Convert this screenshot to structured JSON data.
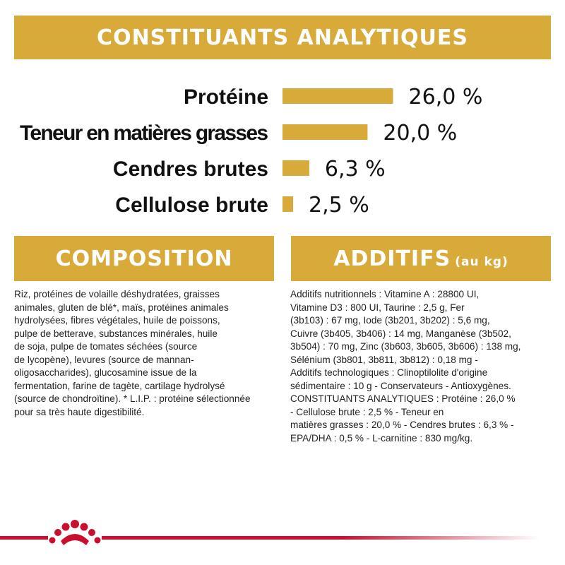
{
  "headers": {
    "constituants": "CONSTITUANTS ANALYTIQUES",
    "composition": "COMPOSITION",
    "additifs": "ADDITIFS",
    "additifs_unit": "(au kg)"
  },
  "chart_data": {
    "type": "bar",
    "categories": [
      "Protéine",
      "Teneur en matières grasses",
      "Cendres brutes",
      "Cellulose brute"
    ],
    "values": [
      26.0,
      20.0,
      6.3,
      2.5
    ],
    "value_labels": [
      "26,0 %",
      "20,0 %",
      "6,3 %",
      "2,5 %"
    ],
    "unit": "%",
    "bar_color": "#d8aa3a",
    "title": "",
    "xlabel": "",
    "ylabel": "",
    "grid": false,
    "orientation": "horizontal"
  },
  "composition_lines": [
    "Riz, protéines de volaille déshydratées, graisses",
    "animales, gluten de blé*, maïs, protéines animales",
    "hydrolysées, fibres végétales, huile de poissons,",
    "pulpe de betterave, substances minérales, huile",
    "de soja, pulpe de tomates séchées (source",
    "de lycopène), levures (source de mannan-",
    "oligosaccharides), glucosamine issue de la",
    "fermentation, farine de tagète, cartilage hydrolysé",
    "(source de chondroïtine). * L.I.P. : protéine sélectionnée",
    "pour sa très haute digestibilité."
  ],
  "additifs_lines": [
    "Additifs nutritionnels : Vitamine A : 28800 UI,",
    "Vitamine D3 : 800 UI, Taurine : 2,5 g, Fer",
    "(3b103) : 67 mg, Iode (3b201, 3b202) : 5,6 mg,",
    "Cuivre (3b405, 3b406) : 14 mg, Manganèse (3b502,",
    "3b504) : 70 mg, Zinc (3b603, 3b605, 3b606) : 138 mg,",
    "Sélénium (3b801, 3b811, 3b812) : 0,18 mg -",
    "Additifs technologiques : Clinoptilolite d'origine",
    "sédimentaire : 10 g - Conservateurs - Antioxygènes.",
    "CONSTITUANTS ANALYTIQUES : Protéine : 26,0 %",
    "- Cellulose brute : 2,5 % - Teneur en",
    "matières grasses : 20,0 % - Cendres brutes : 6,3 % -",
    "EPA/DHA : 0,5 % - L-carnitine : 830 mg/kg."
  ],
  "icons": {
    "logo": "royal-canin-crown-icon",
    "brand_red": "#c8102e"
  }
}
